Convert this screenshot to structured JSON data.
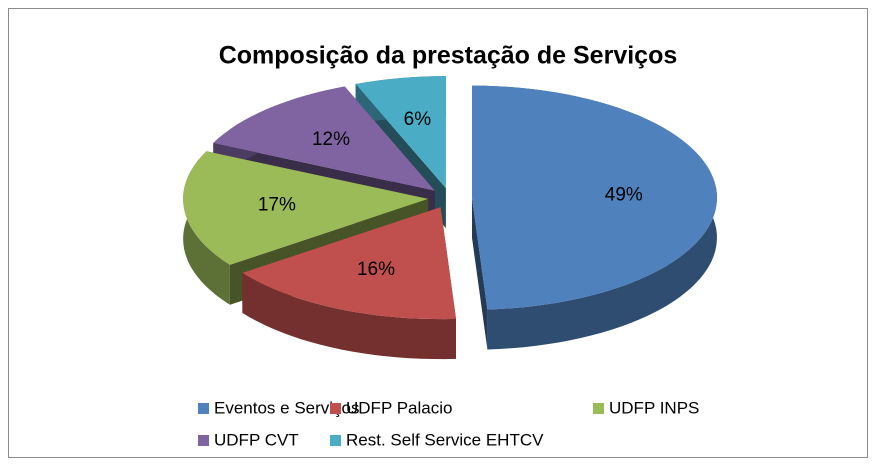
{
  "chart_data": {
    "type": "pie3d",
    "title": "Composição da prestação de Serviços",
    "categories": [
      "Eventos e Serviços",
      "UDFP Palacio",
      "UDFP INPS",
      "UDFP CVT",
      "Rest. Self Service EHTCV"
    ],
    "values": [
      49,
      16,
      17,
      12,
      6
    ],
    "value_labels": [
      "49%",
      "16%",
      "17%",
      "12%",
      "6%"
    ],
    "colors": [
      "#4f81bd",
      "#c0504d",
      "#9bbb59",
      "#8064a2",
      "#4bacc6"
    ],
    "legend": "bottom"
  }
}
